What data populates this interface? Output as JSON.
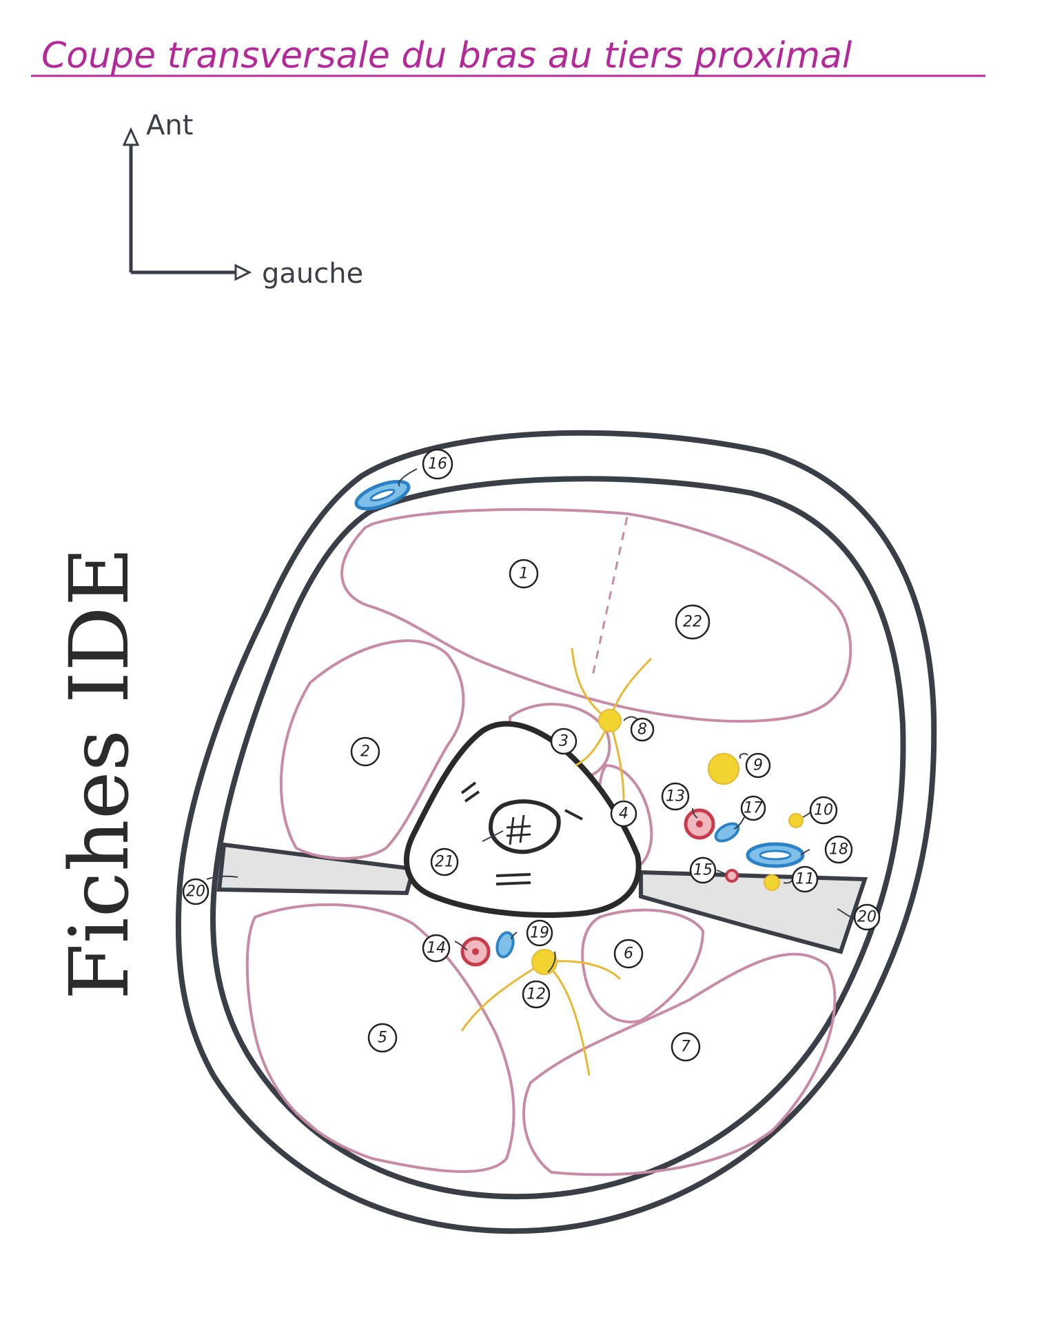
{
  "title": "Coupe transversale du bras au tiers proximal",
  "orientation": {
    "up_label": "Ant",
    "right_label": "gauche"
  },
  "watermark": "Fiches IDE",
  "labels": [
    "1",
    "2",
    "3",
    "4",
    "5",
    "6",
    "7",
    "8",
    "9",
    "10",
    "11",
    "12",
    "13",
    "14",
    "15",
    "16",
    "17",
    "18",
    "19",
    "20",
    "20",
    "21",
    "22"
  ],
  "colors": {
    "title": "#b5289a",
    "outline": "#3a3f47",
    "muscle": "#c98aa6",
    "nerve": "#f2d430",
    "nerve_fibre": "#e8b830",
    "artery": "#c93a4a",
    "vein": "#2a82c9",
    "septum": "#dcdcdc"
  }
}
